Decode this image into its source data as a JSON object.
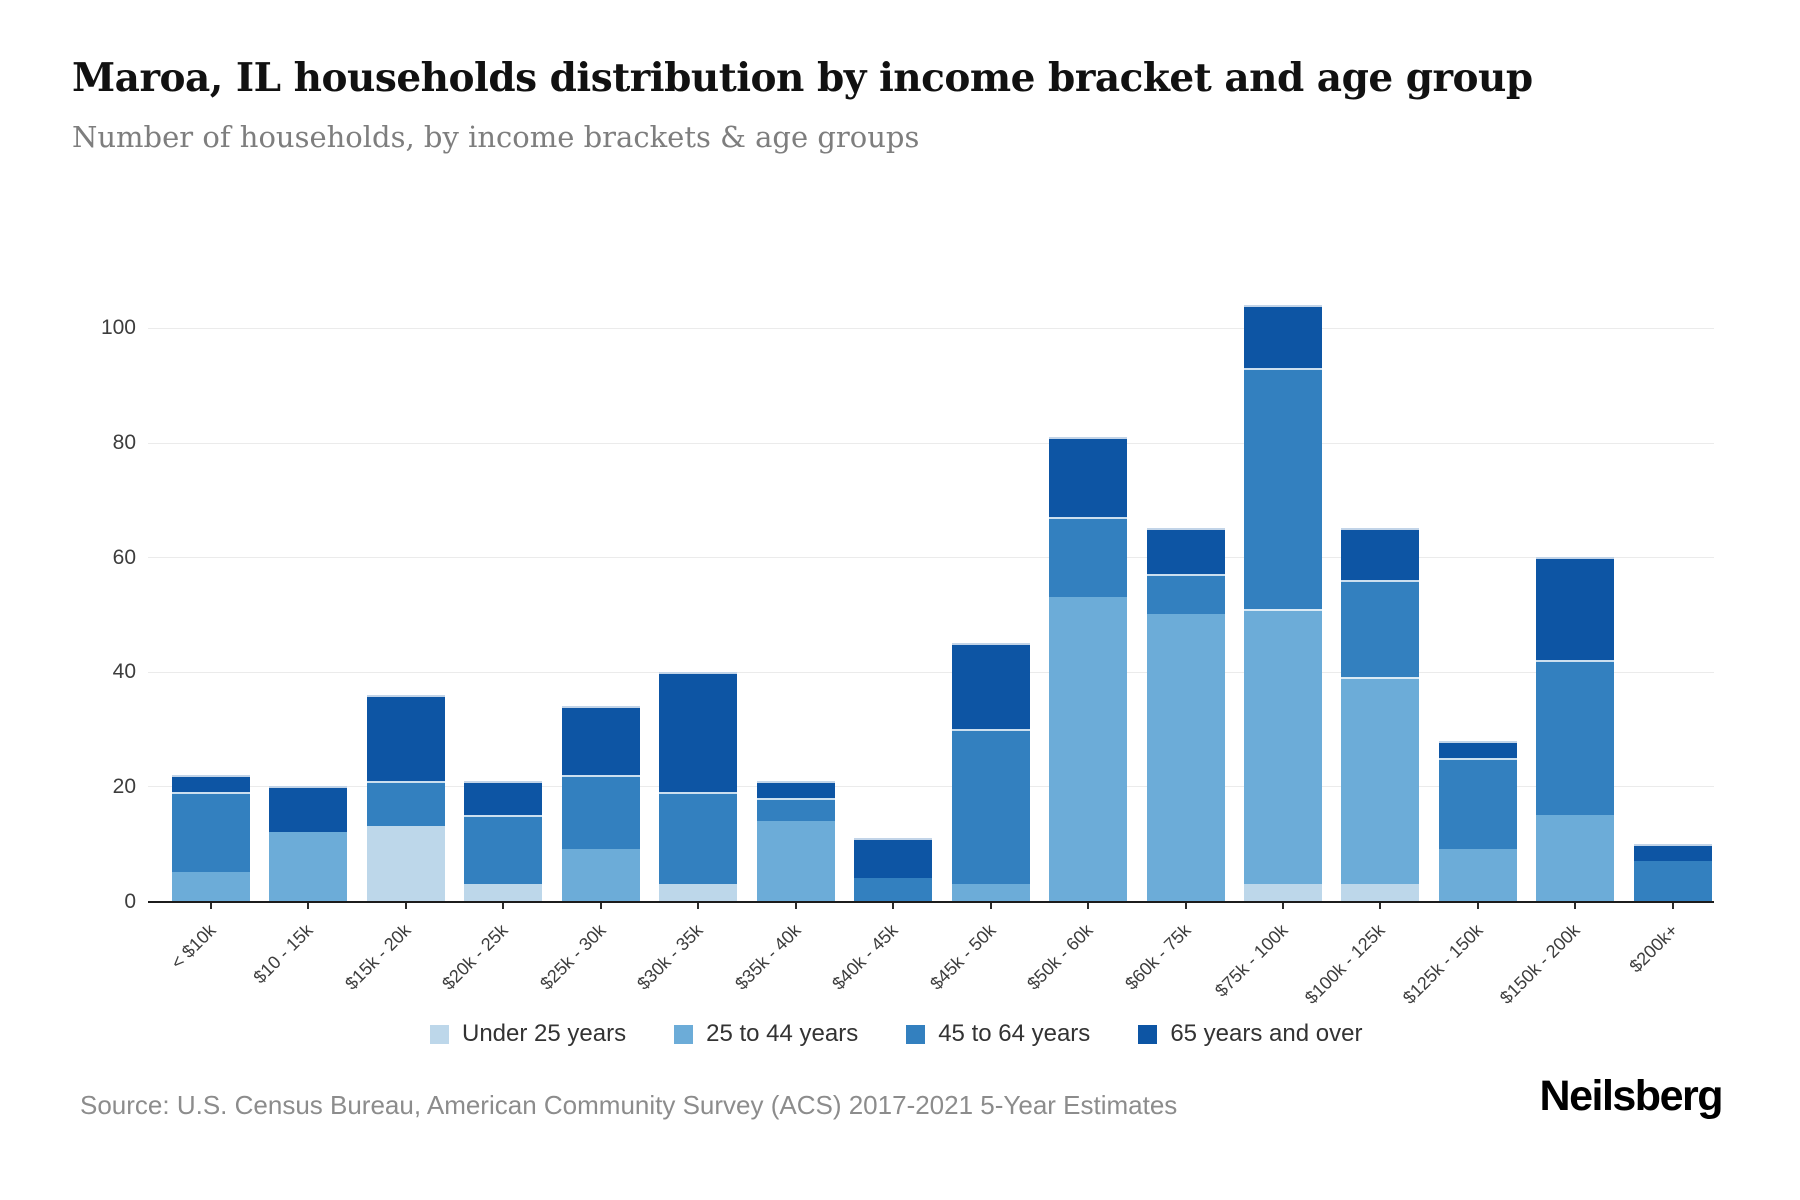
{
  "page": {
    "title": "Maroa, IL households distribution by income bracket and age group",
    "subtitle": "Number of households, by income brackets & age groups",
    "source": "Source: U.S. Census Bureau, American Community Survey (ACS) 2017-2021 5-Year Estimates",
    "brand": "Neilsberg"
  },
  "chart_data": {
    "type": "bar",
    "stacked": true,
    "title": "Maroa, IL households distribution by income bracket and age group",
    "subtitle": "Number of households, by income brackets & age groups",
    "xlabel": "",
    "ylabel": "",
    "grid": "horizontal",
    "legend_position": "bottom",
    "ylim": [
      0,
      110
    ],
    "yticks": [
      0,
      20,
      40,
      60,
      80,
      100
    ],
    "categories": [
      "< $10k",
      "$10 - 15k",
      "$15k - 20k",
      "$20k - 25k",
      "$25k - 30k",
      "$30k - 35k",
      "$35k - 40k",
      "$40k - 45k",
      "$45k - 50k",
      "$50k - 60k",
      "$60k - 75k",
      "$75k - 100k",
      "$100k - 125k",
      "$125k - 150k",
      "$150k - 200k",
      "$200k+"
    ],
    "series": [
      {
        "name": "Under 25 years",
        "color": "#bdd7ea",
        "values": [
          0,
          0,
          13,
          3,
          0,
          3,
          0,
          0,
          0,
          0,
          0,
          3,
          3,
          0,
          0,
          0
        ]
      },
      {
        "name": "25 to 44 years",
        "color": "#6cacd8",
        "values": [
          5,
          12,
          0,
          0,
          9,
          0,
          14,
          0,
          3,
          53,
          50,
          48,
          36,
          9,
          15,
          0
        ]
      },
      {
        "name": "45 to 64 years",
        "color": "#3380bf",
        "values": [
          14,
          0,
          8,
          12,
          13,
          16,
          4,
          4,
          27,
          14,
          7,
          42,
          17,
          16,
          27,
          7
        ]
      },
      {
        "name": "65 years and over",
        "color": "#0d55a4",
        "values": [
          3,
          8,
          15,
          6,
          12,
          21,
          3,
          7,
          15,
          14,
          8,
          11,
          9,
          3,
          18,
          3
        ]
      }
    ],
    "totals": [
      22,
      20,
      36,
      21,
      34,
      40,
      21,
      11,
      45,
      81,
      65,
      104,
      65,
      28,
      60,
      10
    ]
  }
}
